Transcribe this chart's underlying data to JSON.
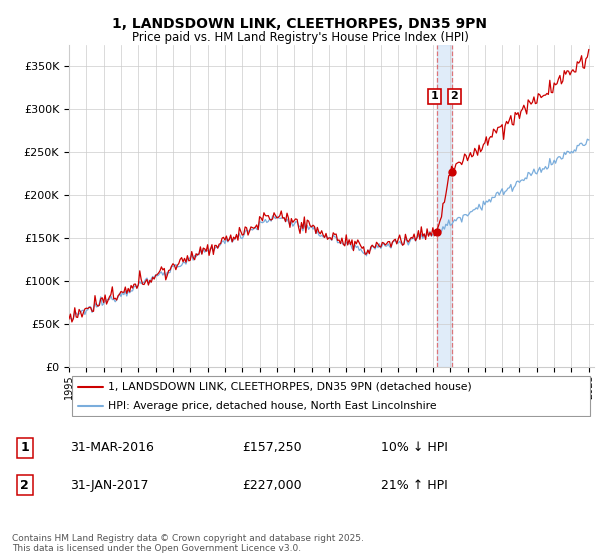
{
  "title": "1, LANDSDOWN LINK, CLEETHORPES, DN35 9PN",
  "subtitle": "Price paid vs. HM Land Registry's House Price Index (HPI)",
  "ylim": [
    0,
    375000
  ],
  "yticks": [
    0,
    50000,
    100000,
    150000,
    200000,
    250000,
    300000,
    350000
  ],
  "ytick_labels": [
    "£0",
    "£50K",
    "£100K",
    "£150K",
    "£200K",
    "£250K",
    "£300K",
    "£350K"
  ],
  "x_start_year": 1995,
  "x_end_year": 2025,
  "line1_color": "#cc0000",
  "line2_color": "#7aaddc",
  "vline_color": "#dd4444",
  "span_color": "#ddeeff",
  "marker1_date": 2016.25,
  "marker2_date": 2017.08,
  "marker1_value": 157250,
  "marker2_value": 227000,
  "legend_label1": "1, LANDSDOWN LINK, CLEETHORPES, DN35 9PN (detached house)",
  "legend_label2": "HPI: Average price, detached house, North East Lincolnshire",
  "table_row1": [
    "1",
    "31-MAR-2016",
    "£157,250",
    "10% ↓ HPI"
  ],
  "table_row2": [
    "2",
    "31-JAN-2017",
    "£227,000",
    "21% ↑ HPI"
  ],
  "footnote": "Contains HM Land Registry data © Crown copyright and database right 2025.\nThis data is licensed under the Open Government Licence v3.0.",
  "background_color": "#ffffff",
  "grid_color": "#cccccc"
}
